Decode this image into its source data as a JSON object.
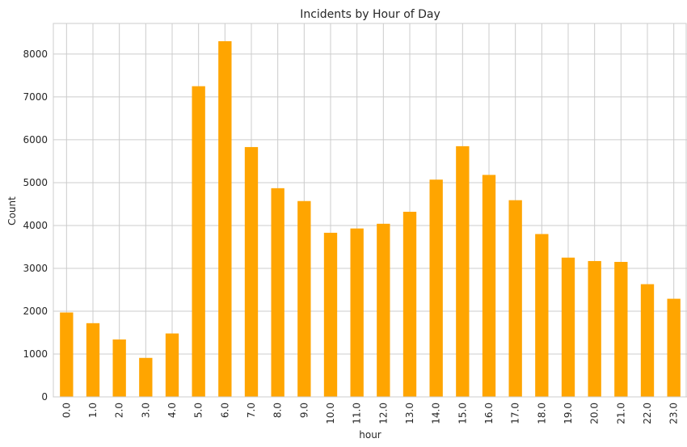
{
  "chart_data": {
    "type": "bar",
    "title": "Incidents by Hour of Day",
    "xlabel": "hour",
    "ylabel": "Count",
    "categories": [
      "0.0",
      "1.0",
      "2.0",
      "3.0",
      "4.0",
      "5.0",
      "6.0",
      "7.0",
      "8.0",
      "9.0",
      "10.0",
      "11.0",
      "12.0",
      "13.0",
      "14.0",
      "15.0",
      "16.0",
      "17.0",
      "18.0",
      "19.0",
      "20.0",
      "21.0",
      "22.0",
      "23.0"
    ],
    "values": [
      1970,
      1720,
      1340,
      910,
      1480,
      7250,
      8300,
      5830,
      4870,
      4570,
      3830,
      3930,
      4040,
      4320,
      5070,
      5850,
      5180,
      4590,
      3800,
      3250,
      3170,
      3150,
      2630,
      2290
    ],
    "yticks": [
      0,
      1000,
      2000,
      3000,
      4000,
      5000,
      6000,
      7000,
      8000
    ],
    "ylim": [
      0,
      8715
    ],
    "grid": true,
    "bar_color": "#FFA500",
    "grid_color": "#CCCCCC",
    "legend": "none"
  }
}
